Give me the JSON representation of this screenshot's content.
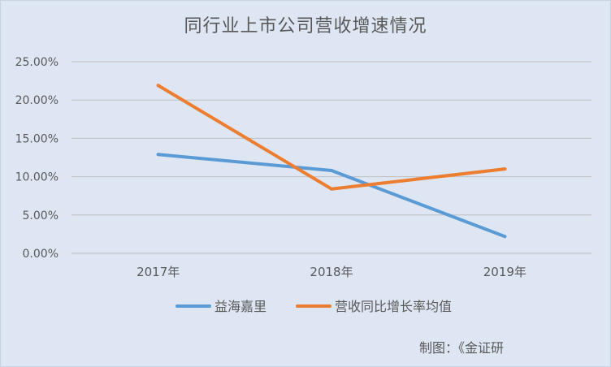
{
  "chart_data": {
    "type": "line",
    "title": "同行业上市公司营收增速情况",
    "categories": [
      "2017年",
      "2018年",
      "2019年"
    ],
    "series": [
      {
        "name": "益海嘉里",
        "values": [
          12.9,
          10.8,
          2.2
        ],
        "color": "#5B9BD5"
      },
      {
        "name": "营收同比增长率均值",
        "values": [
          21.9,
          8.4,
          11.0
        ],
        "color": "#ED7D31"
      }
    ],
    "ylim": [
      0,
      25
    ],
    "yticks": [
      "0.00%",
      "5.00%",
      "10.00%",
      "15.00%",
      "20.00%",
      "25.00%"
    ],
    "ytick_values": [
      0,
      5,
      10,
      15,
      20,
      25
    ],
    "grid": true,
    "legend": "bottom"
  },
  "credit": "制图：《金证研"
}
